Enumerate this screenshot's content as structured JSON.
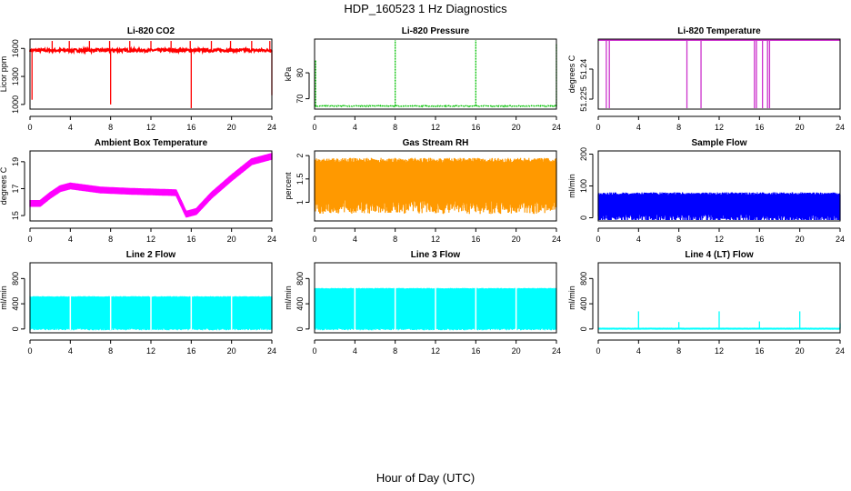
{
  "figure": {
    "title": "HDP_160523  1 Hz Diagnostics",
    "xlabel": "Hour of Day (UTC)"
  },
  "chart_data": [
    {
      "id": "co2",
      "type": "line",
      "title": "Li-820 CO2",
      "ylabel": "Licor ppm",
      "color": "#ff0000",
      "xlim": [
        0,
        24
      ],
      "ylim": [
        950,
        1700
      ],
      "xticks": [
        0,
        4,
        8,
        12,
        16,
        20,
        24
      ],
      "yticks": [
        1000,
        1300,
        1600
      ],
      "baseline": 1580,
      "noise": 15,
      "spikes": [
        {
          "x": 2.2,
          "y": 1680
        },
        {
          "x": 3.9,
          "y": 1680
        },
        {
          "x": 5.9,
          "y": 1680
        },
        {
          "x": 7.9,
          "y": 1680
        },
        {
          "x": 9.9,
          "y": 1680
        },
        {
          "x": 12.0,
          "y": 1680
        },
        {
          "x": 14.0,
          "y": 1680
        },
        {
          "x": 15.9,
          "y": 1680
        },
        {
          "x": 18.0,
          "y": 1680
        },
        {
          "x": 19.9,
          "y": 1680
        },
        {
          "x": 22.0,
          "y": 1680
        },
        {
          "x": 23.8,
          "y": 1680
        },
        {
          "x": 0.2,
          "y": 1050
        },
        {
          "x": 8.0,
          "y": 1000
        },
        {
          "x": 16.0,
          "y": 960
        },
        {
          "x": 24.0,
          "y": 1100
        }
      ]
    },
    {
      "id": "pressure",
      "type": "line",
      "title": "Li-820 Pressure",
      "ylabel": "kPa",
      "color": "#00c000",
      "xlim": [
        0,
        24
      ],
      "ylim": [
        66,
        93
      ],
      "xticks": [
        0,
        4,
        8,
        12,
        16,
        20,
        24
      ],
      "yticks": [
        70,
        80
      ],
      "baseline": 67.2,
      "noise": 0.2,
      "spikes": [
        {
          "x": 0.1,
          "y": 85
        },
        {
          "x": 8.0,
          "y": 93
        },
        {
          "x": 16.0,
          "y": 93
        },
        {
          "x": 24.0,
          "y": 91
        }
      ]
    },
    {
      "id": "licor_temp",
      "type": "line",
      "title": "Li-820 Temperature",
      "ylabel": "degrees C",
      "color": "#cc33cc",
      "xlim": [
        0,
        24
      ],
      "ylim": [
        51.22,
        51.255
      ],
      "xticks": [
        0,
        4,
        8,
        12,
        16,
        20,
        24
      ],
      "yticks": [
        51.225,
        51.24
      ],
      "baseline": 51.255,
      "noise": 0,
      "spikes": [
        {
          "x": 0.8,
          "y": 51.22
        },
        {
          "x": 1.1,
          "y": 51.22
        },
        {
          "x": 8.8,
          "y": 51.22
        },
        {
          "x": 10.2,
          "y": 51.22
        },
        {
          "x": 15.5,
          "y": 51.22
        },
        {
          "x": 15.7,
          "y": 51.22
        },
        {
          "x": 16.3,
          "y": 51.22
        },
        {
          "x": 16.8,
          "y": 51.22
        },
        {
          "x": 17.0,
          "y": 51.22
        }
      ]
    },
    {
      "id": "box_temp",
      "type": "line",
      "title": "Ambient Box Temperature",
      "ylabel": "degrees C",
      "color": "#ff00ff",
      "xlim": [
        0,
        24
      ],
      "ylim": [
        14.6,
        19.8
      ],
      "xticks": [
        0,
        4,
        8,
        12,
        16,
        20,
        24
      ],
      "yticks": [
        15,
        17,
        19
      ],
      "points": [
        [
          0,
          15.9
        ],
        [
          1,
          15.9
        ],
        [
          2,
          16.5
        ],
        [
          3,
          17.0
        ],
        [
          4,
          17.2
        ],
        [
          5,
          17.1
        ],
        [
          7,
          16.9
        ],
        [
          10,
          16.8
        ],
        [
          14.5,
          16.7
        ],
        [
          15.5,
          15.1
        ],
        [
          16.5,
          15.3
        ],
        [
          18,
          16.5
        ],
        [
          20,
          17.8
        ],
        [
          22,
          19.0
        ],
        [
          24,
          19.4
        ]
      ],
      "noise": 0.25
    },
    {
      "id": "rh",
      "type": "line",
      "title": "Gas Stream RH",
      "ylabel": "percent",
      "color": "#ff9900",
      "xlim": [
        0,
        24
      ],
      "ylim": [
        0.6,
        2.1
      ],
      "xticks": [
        0,
        4,
        8,
        12,
        16,
        20,
        24
      ],
      "yticks": [
        1.0,
        1.5,
        2.0
      ],
      "band": [
        1.05,
        1.95
      ],
      "noise": 0.1
    },
    {
      "id": "sample_flow",
      "type": "line",
      "title": "Sample Flow",
      "ylabel": "ml/min",
      "color": "#0000ff",
      "xlim": [
        0,
        24
      ],
      "ylim": [
        -10,
        210
      ],
      "xticks": [
        0,
        4,
        8,
        12,
        16,
        20,
        24
      ],
      "yticks": [
        0,
        100,
        200
      ],
      "band": [
        10,
        80
      ],
      "noise": 8
    },
    {
      "id": "line2",
      "type": "line",
      "title": "Line 2 Flow",
      "ylabel": "ml/min",
      "color": "#00ffff",
      "xlim": [
        0,
        24
      ],
      "ylim": [
        -60,
        1050
      ],
      "xticks": [
        0,
        4,
        8,
        12,
        16,
        20,
        24
      ],
      "yticks": [
        0,
        400,
        800
      ],
      "band": [
        10,
        520
      ],
      "noise": 10
    },
    {
      "id": "line3",
      "type": "line",
      "title": "Line 3 Flow",
      "ylabel": "ml/min",
      "color": "#00ffff",
      "xlim": [
        0,
        24
      ],
      "ylim": [
        -60,
        1050
      ],
      "xticks": [
        0,
        4,
        8,
        12,
        16,
        20,
        24
      ],
      "yticks": [
        0,
        400,
        800
      ],
      "band": [
        10,
        650
      ],
      "noise": 10
    },
    {
      "id": "line4",
      "type": "line",
      "title": "Line 4 (LT) Flow",
      "ylabel": "ml/min",
      "color": "#00ffff",
      "xlim": [
        0,
        24
      ],
      "ylim": [
        -60,
        1050
      ],
      "xticks": [
        0,
        4,
        8,
        12,
        16,
        20,
        24
      ],
      "yticks": [
        0,
        400,
        800
      ],
      "baseline": 5,
      "noise": 2,
      "spikes": [
        {
          "x": 4.0,
          "y": 280
        },
        {
          "x": 8.0,
          "y": 110
        },
        {
          "x": 12.0,
          "y": 280
        },
        {
          "x": 16.0,
          "y": 120
        },
        {
          "x": 20.0,
          "y": 280
        },
        {
          "x": 24.0,
          "y": 90
        }
      ]
    }
  ]
}
